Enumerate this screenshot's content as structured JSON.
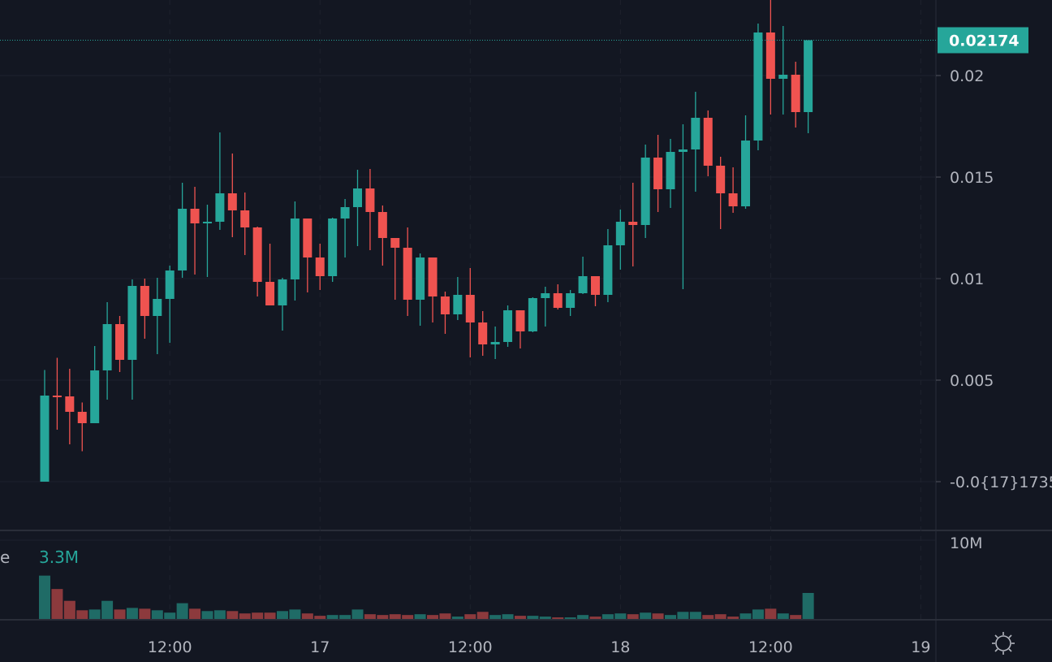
{
  "chart_data": {
    "type": "candlestick",
    "colors": {
      "background": "#131722",
      "up": "#26a69a",
      "down": "#ef5350",
      "volume_up": "#1f6b66",
      "volume_down": "#8c3a3d",
      "grid": "#1e222d",
      "last_price_bg": "#26a69a"
    },
    "grid": true,
    "price_axis": {
      "position": "right",
      "ylim": [
        -0.00236,
        0.02372
      ],
      "ticks": [
        {
          "value": 0.02,
          "label": "0.02"
        },
        {
          "value": 0.015,
          "label": "0.015"
        },
        {
          "value": 0.01,
          "label": "0.01"
        },
        {
          "value": 0.005,
          "label": "0.005"
        },
        {
          "value": 0.0,
          "label": "-0.0{17}1735"
        }
      ],
      "last_price": {
        "value": 0.02174,
        "label": "0.02174"
      }
    },
    "time_axis": {
      "ticks": [
        {
          "time": "16 12:00",
          "label": "12:00"
        },
        {
          "time": "17 00:00",
          "label": "17"
        },
        {
          "time": "17 12:00",
          "label": "12:00"
        },
        {
          "time": "18 00:00",
          "label": "18"
        },
        {
          "time": "18 12:00",
          "label": "12:00"
        },
        {
          "time": "19 00:00",
          "label": "19"
        }
      ]
    },
    "interval": "1h",
    "first_time": "16 02:00",
    "ohlc_columns": [
      "open",
      "high",
      "low",
      "close"
    ],
    "candles": [
      [
        0.0,
        0.0055,
        0.0,
        0.00424
      ],
      [
        0.00424,
        0.0061,
        0.00256,
        0.0042
      ],
      [
        0.0042,
        0.00556,
        0.00184,
        0.00344
      ],
      [
        0.00344,
        0.0039,
        0.0015,
        0.00288
      ],
      [
        0.00288,
        0.00668,
        0.00288,
        0.00548
      ],
      [
        0.00548,
        0.00884,
        0.00404,
        0.00776
      ],
      [
        0.00776,
        0.00816,
        0.0054,
        0.006
      ],
      [
        0.006,
        0.00996,
        0.00404,
        0.00964
      ],
      [
        0.00964,
        0.01,
        0.00704,
        0.00816
      ],
      [
        0.00816,
        0.01004,
        0.00628,
        0.009
      ],
      [
        0.009,
        0.01064,
        0.00684,
        0.0104
      ],
      [
        0.0104,
        0.01472,
        0.01004,
        0.01344
      ],
      [
        0.01344,
        0.01452,
        0.0102,
        0.01272
      ],
      [
        0.01272,
        0.01364,
        0.01008,
        0.0128
      ],
      [
        0.0128,
        0.0172,
        0.0124,
        0.0142
      ],
      [
        0.0142,
        0.01616,
        0.01204,
        0.01336
      ],
      [
        0.01336,
        0.01424,
        0.01116,
        0.01252
      ],
      [
        0.01252,
        0.01256,
        0.00912,
        0.00984
      ],
      [
        0.00984,
        0.01172,
        0.00868,
        0.00868
      ],
      [
        0.00868,
        0.01004,
        0.00744,
        0.00996
      ],
      [
        0.00996,
        0.0138,
        0.00892,
        0.01296
      ],
      [
        0.01296,
        0.01296,
        0.00932,
        0.01104
      ],
      [
        0.01104,
        0.01172,
        0.00944,
        0.01012
      ],
      [
        0.01012,
        0.013,
        0.00984,
        0.01296
      ],
      [
        0.01296,
        0.01392,
        0.01104,
        0.01352
      ],
      [
        0.01352,
        0.01536,
        0.0116,
        0.01444
      ],
      [
        0.01444,
        0.0154,
        0.0114,
        0.01328
      ],
      [
        0.01328,
        0.0136,
        0.01064,
        0.012
      ],
      [
        0.012,
        0.012,
        0.00896,
        0.01152
      ],
      [
        0.01152,
        0.01252,
        0.00816,
        0.00896
      ],
      [
        0.00896,
        0.01124,
        0.00768,
        0.01104
      ],
      [
        0.01104,
        0.01104,
        0.00784,
        0.00912
      ],
      [
        0.00912,
        0.00936,
        0.00728,
        0.00824
      ],
      [
        0.00824,
        0.01008,
        0.00796,
        0.0092
      ],
      [
        0.0092,
        0.01052,
        0.00612,
        0.00784
      ],
      [
        0.00784,
        0.0084,
        0.0062,
        0.00676
      ],
      [
        0.00676,
        0.00764,
        0.00604,
        0.00688
      ],
      [
        0.00688,
        0.00868,
        0.00664,
        0.00844
      ],
      [
        0.00844,
        0.00844,
        0.00656,
        0.0074
      ],
      [
        0.0074,
        0.00908,
        0.00736,
        0.00904
      ],
      [
        0.00904,
        0.0096,
        0.00764,
        0.00928
      ],
      [
        0.00928,
        0.00972,
        0.00848,
        0.00856
      ],
      [
        0.00856,
        0.00944,
        0.00816,
        0.00928
      ],
      [
        0.00928,
        0.01108,
        0.00924,
        0.01012
      ],
      [
        0.01012,
        0.01012,
        0.00864,
        0.0092
      ],
      [
        0.0092,
        0.01244,
        0.00884,
        0.01164
      ],
      [
        0.01164,
        0.0134,
        0.01044,
        0.0128
      ],
      [
        0.0128,
        0.01472,
        0.0106,
        0.01264
      ],
      [
        0.01264,
        0.0166,
        0.012,
        0.01596
      ],
      [
        0.01596,
        0.01708,
        0.01328,
        0.0144
      ],
      [
        0.0144,
        0.01688,
        0.01348,
        0.01624
      ],
      [
        0.01624,
        0.0176,
        0.00948,
        0.01636
      ],
      [
        0.01636,
        0.0192,
        0.01428,
        0.01792
      ],
      [
        0.01792,
        0.01828,
        0.01504,
        0.01556
      ],
      [
        0.01556,
        0.016,
        0.01244,
        0.0142
      ],
      [
        0.0142,
        0.01548,
        0.01324,
        0.01356
      ],
      [
        0.01356,
        0.01804,
        0.01344,
        0.0168
      ],
      [
        0.0168,
        0.02256,
        0.01632,
        0.02212
      ],
      [
        0.02212,
        0.02372,
        0.01808,
        0.01984
      ],
      [
        0.01984,
        0.02244,
        0.01808,
        0.02004
      ],
      [
        0.02004,
        0.02068,
        0.01744,
        0.0182
      ],
      [
        0.0182,
        0.02174,
        0.01716,
        0.02174
      ]
    ],
    "volume": {
      "unit": "M",
      "ylim": [
        0,
        10
      ],
      "ticks": [
        {
          "value": 10,
          "label": "10M"
        }
      ],
      "legend_prefix": "e",
      "legend_value": "3.3M",
      "values": [
        5.5,
        3.8,
        2.3,
        1.1,
        1.2,
        2.3,
        1.2,
        1.4,
        1.3,
        1.1,
        0.8,
        2.0,
        1.3,
        1.0,
        1.1,
        1.0,
        0.7,
        0.8,
        0.8,
        1.0,
        1.2,
        0.7,
        0.4,
        0.5,
        0.5,
        1.2,
        0.6,
        0.5,
        0.6,
        0.5,
        0.6,
        0.5,
        0.7,
        0.3,
        0.6,
        0.9,
        0.5,
        0.6,
        0.4,
        0.4,
        0.3,
        0.2,
        0.2,
        0.5,
        0.3,
        0.6,
        0.7,
        0.6,
        0.8,
        0.7,
        0.5,
        0.9,
        0.9,
        0.5,
        0.6,
        0.3,
        0.7,
        1.2,
        1.3,
        0.7,
        0.5,
        3.3
      ]
    }
  },
  "toolbar": {
    "settings_icon": "gear-icon"
  }
}
